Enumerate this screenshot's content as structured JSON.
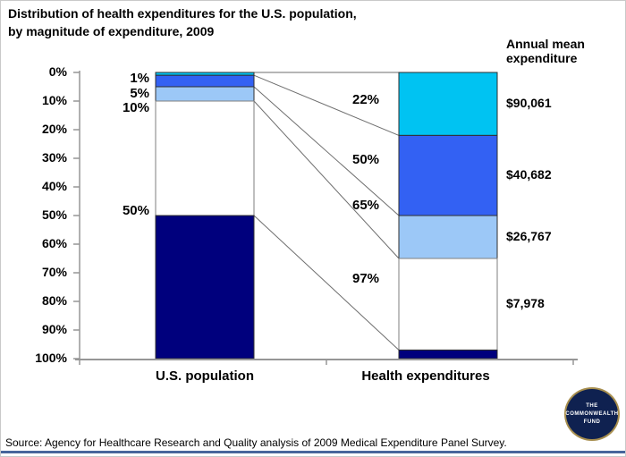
{
  "title": "Distribution of health expenditures for the U.S. population,\nby magnitude of expenditure, 2009",
  "annual_mean_header": "Annual mean\nexpenditure",
  "source": "Source: Agency for Healthcare Research and Quality analysis of 2009 Medical Expenditure Panel Survey.",
  "logo": {
    "line1": "THE",
    "line2": "COMMONWEALTH",
    "line3": "FUND"
  },
  "colors": {
    "cyan": "#00C3F2",
    "royal_blue": "#3361F3",
    "light_blue": "#9CC8F7",
    "white": "#FFFFFF",
    "navy": "#00007D",
    "axis": "#969696",
    "connector": "#6E6E6E",
    "segment_border": "#2F2F2F",
    "white_segment_border": "#7F7F7F",
    "bottom_rule": "#47659B",
    "logo_bg": "#0F2150",
    "logo_ring": "#A78E4E",
    "text": "#000000"
  },
  "chart_data": {
    "type": "bar",
    "variant": "paired 100% stacked distribution with connectors",
    "title": "Distribution of health expenditures for the U.S. population, by magnitude of expenditure, 2009",
    "categories": [
      "U.S. population",
      "Health expenditures"
    ],
    "y_ticks": [
      "0%",
      "10%",
      "20%",
      "30%",
      "40%",
      "50%",
      "60%",
      "70%",
      "80%",
      "90%",
      "100%"
    ],
    "y_axis_range": [
      0,
      100
    ],
    "y_axis_direction": "0% at top, 100% at bottom",
    "bars": {
      "population": [
        1,
        4,
        5,
        40,
        50
      ],
      "expenditures": [
        22,
        28,
        15,
        32,
        3
      ]
    },
    "cum_labels": {
      "population": [
        "1%",
        "5%",
        "10%",
        "50%"
      ],
      "expenditures": [
        "22%",
        "50%",
        "65%",
        "97%"
      ]
    },
    "connectors_population_to_expenditure_pct": [
      [
        0,
        0
      ],
      [
        1,
        22
      ],
      [
        5,
        50
      ],
      [
        10,
        65
      ],
      [
        50,
        97
      ]
    ],
    "annual_means": [
      "$90,061",
      "$40,682",
      "$26,767",
      "$7,978"
    ],
    "segment_colors": [
      "#00C3F2",
      "#3361F3",
      "#9CC8F7",
      "#FFFFFF",
      "#00007D"
    ],
    "legend_position": "none",
    "grid": false
  }
}
